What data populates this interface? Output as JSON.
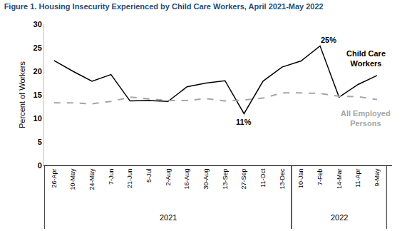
{
  "chart_data": {
    "type": "line",
    "title": "Figure 1. Housing Insecurity Experienced by Child Care Workers, April 2021-May 2022",
    "y_label": "Percent of Workers",
    "categories": [
      "26-Apr",
      "10-May",
      "24-May",
      "7-Jun",
      "21-Jun",
      "5-Jul",
      "2-Aug",
      "16-Aug",
      "30-Aug",
      "13-Sep",
      "27-Sep",
      "11-Oct",
      "13-Dec",
      "10-Jan",
      "7-Feb",
      "14-Mar",
      "11-Apr",
      "9-May"
    ],
    "groups": [
      {
        "label": "2021",
        "from": "26-Apr",
        "to": "13-Dec"
      },
      {
        "label": "2022",
        "from": "10-Jan",
        "to": "9-May"
      }
    ],
    "series": [
      {
        "name": "Child Care Workers",
        "color": "#000000",
        "line_style": "solid",
        "values": [
          22.3,
          20.0,
          17.9,
          19.3,
          13.7,
          13.8,
          13.6,
          16.7,
          17.5,
          18.0,
          11.0,
          17.9,
          20.9,
          22.2,
          25.4,
          14.5,
          17.2,
          19.1
        ]
      },
      {
        "name": "All Employed Persons",
        "color": "#a6a6a6",
        "line_style": "dash",
        "values": [
          13.3,
          13.3,
          13.1,
          13.6,
          14.5,
          14.1,
          13.8,
          13.8,
          14.2,
          13.7,
          13.9,
          14.3,
          15.4,
          15.4,
          15.3,
          14.7,
          14.6,
          14.0
        ]
      }
    ],
    "annotations": [
      {
        "text": "25%",
        "series": "Child Care Workers",
        "category": "7-Feb"
      },
      {
        "text": "11%",
        "series": "Child Care Workers",
        "category": "27-Sep"
      }
    ],
    "ylim": [
      0,
      30
    ],
    "yticks": [
      0,
      5,
      10,
      15,
      20,
      25,
      30
    ],
    "grid": false,
    "legend": "end"
  }
}
